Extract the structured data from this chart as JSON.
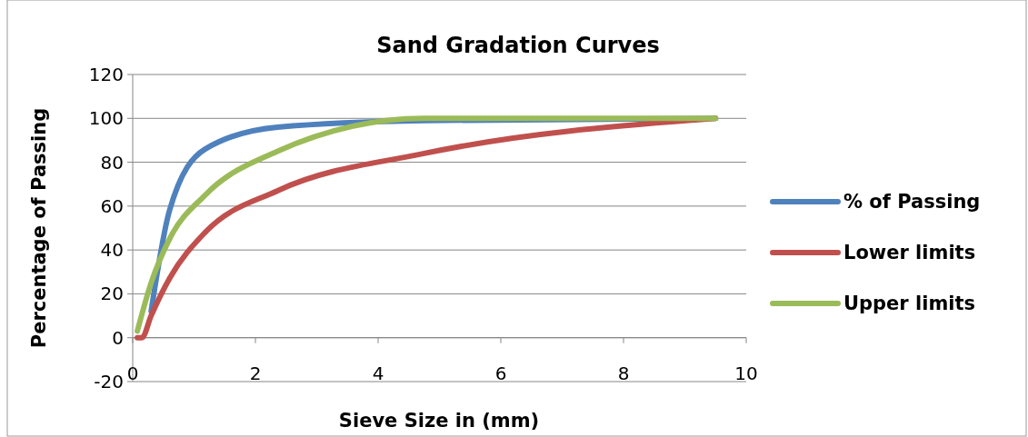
{
  "chart_data": {
    "type": "line",
    "title": "Sand Gradation Curves",
    "xlabel": "Sieve Size in (mm)",
    "ylabel": "Percentage of Passing",
    "xlim": [
      0,
      10
    ],
    "xticks": [
      0,
      2,
      4,
      6,
      8,
      10
    ],
    "ylim": [
      -20,
      120
    ],
    "yticks": [
      -20,
      0,
      20,
      40,
      60,
      80,
      100,
      120
    ],
    "grid": "y",
    "legend": "right",
    "marker": "none",
    "series": [
      {
        "name": "% of Passing",
        "color": "#4f81bd",
        "x": [
          0.3,
          0.6,
          1.18,
          2.36,
          4.75,
          9.5
        ],
        "values": [
          12,
          58,
          86,
          96,
          99,
          100
        ]
      },
      {
        "name": "Lower limits",
        "color": "#c0504d",
        "x": [
          0.075,
          0.15,
          0.3,
          0.6,
          1.18,
          2.36,
          4.75,
          9.5
        ],
        "values": [
          0,
          0,
          10,
          27,
          48,
          67,
          84,
          100
        ]
      },
      {
        "name": "Upper limits",
        "color": "#9bbb59",
        "x": [
          0.075,
          0.3,
          0.6,
          1.18,
          2.36,
          4.75,
          9.5
        ],
        "values": [
          3,
          25,
          45,
          65,
          85,
          100,
          100
        ]
      }
    ]
  }
}
